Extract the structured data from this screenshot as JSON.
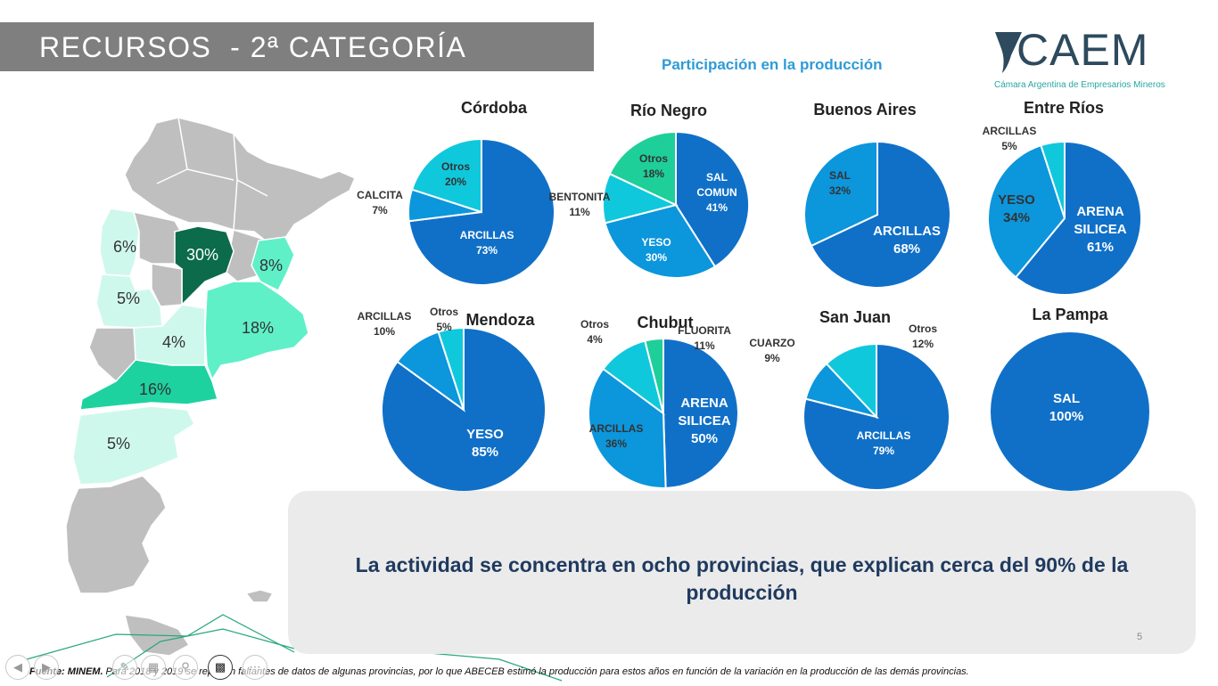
{
  "header": {
    "title": "RECURSOS  - 2ª CATEGORÍA",
    "subtitle": "Participación en la producción"
  },
  "logo": {
    "text": "CAEM",
    "subtext": "Cámara Argentina de Empresarios Mineros"
  },
  "map": {
    "labels": [
      "6%",
      "30%",
      "8%",
      "5%",
      "18%",
      "4%",
      "16%",
      "5%"
    ],
    "colors": {
      "gray": "#bfbfbf",
      "dark": "#0b6b4b",
      "mint": "#5ff0c8",
      "mid": "#1ed2a0",
      "light": "#cff8ec"
    }
  },
  "colors": {
    "blue": "#1070c8",
    "mid_blue": "#0c96dc",
    "cyan": "#10c8dc",
    "green": "#1ecf9a",
    "label_dark": "#333333"
  },
  "chart_data": [
    {
      "type": "pie",
      "title": "Córdoba",
      "slices": [
        {
          "label": "ARCILLAS",
          "value": 73
        },
        {
          "label": "CALCITA",
          "value": 7
        },
        {
          "label": "Otros",
          "value": 20
        }
      ]
    },
    {
      "type": "pie",
      "title": "Río Negro",
      "slices": [
        {
          "label": "SAL COMUN",
          "value": 41
        },
        {
          "label": "YESO",
          "value": 30
        },
        {
          "label": "BENTONITA",
          "value": 11
        },
        {
          "label": "Otros",
          "value": 18
        }
      ]
    },
    {
      "type": "pie",
      "title": "Buenos Aires",
      "slices": [
        {
          "label": "ARCILLAS",
          "value": 68
        },
        {
          "label": "SAL",
          "value": 32
        }
      ]
    },
    {
      "type": "pie",
      "title": "Entre Ríos",
      "slices": [
        {
          "label": "ARENA SILICEA",
          "value": 61
        },
        {
          "label": "YESO",
          "value": 34
        },
        {
          "label": "ARCILLAS",
          "value": 5
        }
      ]
    },
    {
      "type": "pie",
      "title": "Mendoza",
      "slices": [
        {
          "label": "YESO",
          "value": 85
        },
        {
          "label": "ARCILLAS",
          "value": 10
        },
        {
          "label": "Otros",
          "value": 5
        }
      ]
    },
    {
      "type": "pie",
      "title": "Chubut",
      "slices": [
        {
          "label": "ARENA SILICEA",
          "value": 50
        },
        {
          "label": "ARCILLAS",
          "value": 36
        },
        {
          "label": "FLUORITA",
          "value": 11
        },
        {
          "label": "Otros",
          "value": 4
        }
      ]
    },
    {
      "type": "pie",
      "title": "San Juan",
      "slices": [
        {
          "label": "ARCILLAS",
          "value": 79
        },
        {
          "label": "CUARZO",
          "value": 9
        },
        {
          "label": "Otros",
          "value": 12
        }
      ]
    },
    {
      "type": "pie",
      "title": "La Pampa",
      "slices": [
        {
          "label": "SAL",
          "value": 100
        }
      ]
    }
  ],
  "callout": {
    "text": "La actividad se concentra en ocho provincias, que explican cerca del 90% de la producción"
  },
  "page_number": "5",
  "footer": {
    "source_label": "Fuente: MINEM.",
    "note": " Para 2018 y 2019 se reportan faltantes de datos de algunas provincias, por lo que ABECEB estimó la producción para estos años en función de la variación en la producción de las demás provincias."
  }
}
